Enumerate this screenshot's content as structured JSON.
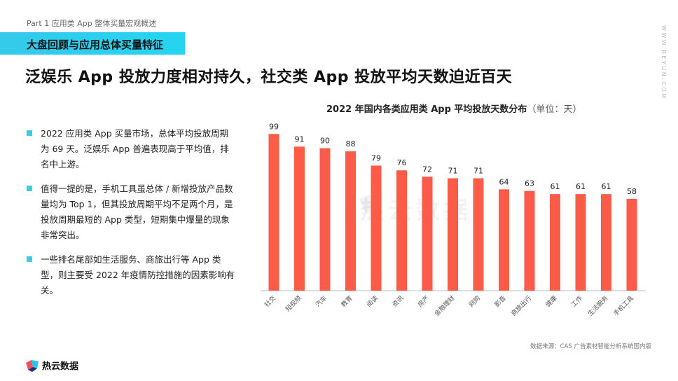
{
  "header": {
    "part_label": "Part 1 应用类 App 整体买量宏观概述",
    "section_title": "大盘回顾与应用总体买量特征",
    "headline": "泛娱乐 App 投放力度相对持久，社交类 App 投放平均天数迫近百天",
    "side_url": "WWW.REYUN.COM"
  },
  "bullets": [
    "2022 应用类 App 买量市场，总体平均投放周期为 69 天。泛娱乐 App 普遍表现高于平均值，排名中上游。",
    "值得一提的是，手机工具虽总体 / 新增投放产品数量均为 Top 1，但其投放周期平均不足两个月，是投放周期最短的 App 类型，短期集中爆量的现象非常突出。",
    "一些排名尾部如生活服务、商旅出行等 App 类型，则主要受 2022 年疫情防控措施的因素影响有关。"
  ],
  "chart_data": {
    "type": "bar",
    "title": "2022 年国内各类应用类 App 平均投放天数分布",
    "unit_label": "（单位：天）",
    "categories": [
      "社交",
      "短视频",
      "汽车",
      "教育",
      "阅读",
      "资讯",
      "房产",
      "金融理财",
      "网购",
      "影音",
      "商旅出行",
      "健康",
      "工作",
      "生活服务",
      "手机工具"
    ],
    "values": [
      99,
      91,
      90,
      88,
      79,
      76,
      72,
      71,
      71,
      64,
      63,
      61,
      61,
      61,
      58
    ],
    "ylim": [
      0,
      100
    ],
    "bar_color": "#fc5b48",
    "grid": false,
    "legend": "none"
  },
  "watermark": "热云数据",
  "source": "数据来源：CAS 广告素材智能分析系统国内版",
  "footer": {
    "brand": "热云数据"
  },
  "colors": {
    "accent": "#35c9ea",
    "bar": "#fc5b48"
  }
}
